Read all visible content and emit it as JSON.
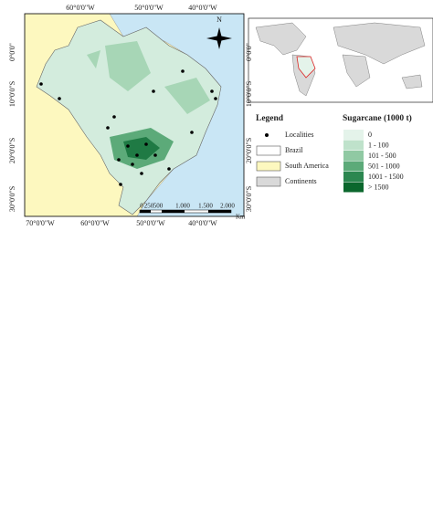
{
  "map": {
    "north": "N",
    "top_labels": [
      "60°0'0\"W",
      "50°0'0\"W",
      "40°0'0\"W"
    ],
    "bottom_labels": [
      "70°0'0\"W",
      "60°0'0\"W",
      "50°0'0\"W",
      "40°0'0\"W"
    ],
    "left_labels": [
      "0°0'0\"",
      "10°0'0\"S",
      "20°0'0\"S",
      "30°0'0\"S"
    ],
    "right_labels": [
      "0°0'0\"",
      "10°0'0\"S",
      "20°0'0\"S",
      "30°0'0\"S"
    ],
    "scale_labels": [
      "0",
      "250",
      "500",
      "1.000",
      "1.500",
      "2.000"
    ],
    "scale_unit": "Km"
  },
  "legend": {
    "title": "Legend",
    "items": [
      "Localities",
      "Brazil",
      "South America",
      "Continents"
    ]
  },
  "sugarcane": {
    "title": "Sugarcane (1000 t)",
    "classes": [
      {
        "label": "0",
        "color": "#e4f3ea"
      },
      {
        "label": "1 - 100",
        "color": "#bfe2cb"
      },
      {
        "label": "101 - 500",
        "color": "#90c9a3"
      },
      {
        "label": "501 - 1000",
        "color": "#5caa79"
      },
      {
        "label": "1001 - 1500",
        "color": "#2c8750"
      },
      {
        "label": "> 1500",
        "color": "#0b672d"
      }
    ]
  }
}
